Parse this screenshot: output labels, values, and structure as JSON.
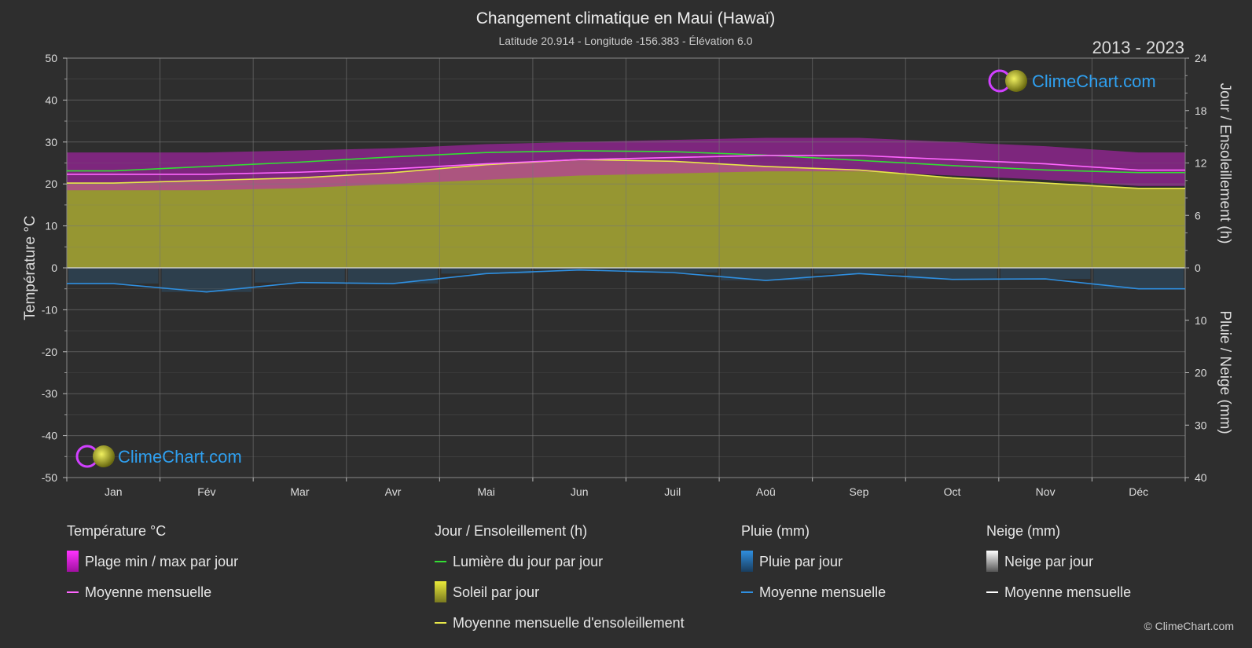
{
  "chart_data": {
    "type": "line",
    "title": "Changement climatique en Maui (Hawaï)",
    "subtitle": "Latitude 20.914 - Longitude -156.383 - Élévation 6.0",
    "period": "2013 - 2023",
    "categories": [
      "Jan",
      "Fév",
      "Mar",
      "Avr",
      "Mai",
      "Jun",
      "Juil",
      "Aoû",
      "Sep",
      "Oct",
      "Nov",
      "Déc"
    ],
    "y_left": {
      "label": "Température °C",
      "ticks": [
        "50",
        "40",
        "30",
        "20",
        "10",
        "0",
        "-10",
        "-20",
        "-30",
        "-40",
        "-50"
      ],
      "range": [
        -50,
        50
      ]
    },
    "y_right_top": {
      "label": "Jour / Ensoleillement (h)",
      "ticks": [
        "24",
        "18",
        "12",
        "6",
        "0"
      ],
      "range": [
        0,
        24
      ]
    },
    "y_right_bottom": {
      "label": "Pluie / Neige (mm)",
      "ticks": [
        "0",
        "10",
        "20",
        "30",
        "40"
      ],
      "range": [
        0,
        40
      ]
    },
    "series": [
      {
        "name": "Lumière du jour par jour",
        "unit": "h",
        "color": "#33dd33",
        "values": [
          11.1,
          11.6,
          12.1,
          12.7,
          13.2,
          13.4,
          13.3,
          12.9,
          12.3,
          11.7,
          11.2,
          10.9
        ]
      },
      {
        "name": "Moyenne mensuelle d'ensoleillement",
        "unit": "h",
        "color": "#e8e84a",
        "values": [
          9.7,
          10.0,
          10.3,
          10.9,
          11.8,
          12.4,
          12.2,
          11.6,
          11.2,
          10.3,
          9.7,
          9.1
        ]
      },
      {
        "name": "Moyenne mensuelle",
        "group": "Température °C",
        "unit": "°C",
        "color": "#ff66ff",
        "values": [
          22.3,
          22.3,
          22.8,
          23.6,
          24.8,
          25.8,
          26.3,
          26.8,
          26.8,
          25.8,
          24.8,
          23.3
        ]
      },
      {
        "name": "Plage min / max par jour (max)",
        "unit": "°C",
        "values": [
          27.5,
          27.5,
          28.0,
          28.5,
          29.5,
          30.0,
          30.5,
          31.0,
          31.0,
          30.0,
          29.0,
          27.5
        ]
      },
      {
        "name": "Plage min / max par jour (min)",
        "unit": "°C",
        "values": [
          18.5,
          18.5,
          19.0,
          20.0,
          21.0,
          22.0,
          22.5,
          23.0,
          23.0,
          22.0,
          21.0,
          19.5
        ]
      },
      {
        "name": "Moyenne mensuelle",
        "group": "Pluie (mm)",
        "unit": "mm",
        "color": "#2f8fe0",
        "values": [
          3.0,
          4.6,
          2.8,
          3.0,
          1.1,
          0.4,
          0.9,
          2.4,
          1.1,
          2.2,
          2.1,
          4.0
        ]
      }
    ],
    "grid": true
  },
  "legend": {
    "temp": {
      "title": "Température °C",
      "items": [
        "Plage min / max par jour",
        "Moyenne mensuelle"
      ]
    },
    "sun": {
      "title": "Jour / Ensoleillement (h)",
      "items": [
        "Lumière du jour par jour",
        "Soleil par jour",
        "Moyenne mensuelle d'ensoleillement"
      ]
    },
    "rain": {
      "title": "Pluie (mm)",
      "items": [
        "Pluie par jour",
        "Moyenne mensuelle"
      ]
    },
    "snow": {
      "title": "Neige (mm)",
      "items": [
        "Neige par jour",
        "Moyenne mensuelle"
      ]
    }
  },
  "brand": {
    "logo_text": "ClimeChart.com",
    "copyright": "© ClimeChart.com"
  },
  "colors": {
    "background": "#2e2e2e",
    "temp_band": "#c020c0",
    "sun_fill": "#a8a832",
    "rain": "#2f8fe0",
    "daylight": "#33dd33",
    "sun_line": "#e8e84a",
    "temp_line": "#ff66ff",
    "logo": "#2fa0f0"
  }
}
